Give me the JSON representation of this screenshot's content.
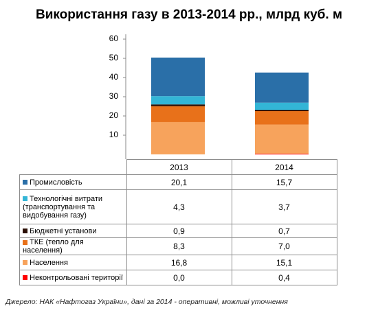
{
  "chart_data": {
    "type": "stacked_bar",
    "title": "Використання газу в 2013-2014 рр., млрд куб. м",
    "categories": [
      "2013",
      "2014"
    ],
    "ylim": [
      0,
      60
    ],
    "yticks": [
      10,
      20,
      30,
      40,
      50,
      60
    ],
    "series": [
      {
        "name": "Промисловість",
        "color": "#2a6fa8",
        "values": [
          20.1,
          15.7
        ],
        "value_labels": [
          "20,1",
          "15,7"
        ]
      },
      {
        "name": "Технологічні витрати (транспортування та видобування газу)",
        "color": "#33b5d6",
        "values": [
          4.3,
          3.7
        ],
        "value_labels": [
          "4,3",
          "3,7"
        ]
      },
      {
        "name": "Бюджетні установи",
        "color": "#2b0f05",
        "values": [
          0.9,
          0.7
        ],
        "value_labels": [
          "0,9",
          "0,7"
        ]
      },
      {
        "name": "ТКЕ (тепло для населення)",
        "color": "#e8711a",
        "values": [
          8.3,
          7.0
        ],
        "value_labels": [
          "8,3",
          "7,0"
        ]
      },
      {
        "name": "Населення",
        "color": "#f7a35c",
        "values": [
          16.8,
          15.1
        ],
        "value_labels": [
          "16,8",
          "15,1"
        ]
      },
      {
        "name": "Неконтрольовані території",
        "color": "#ff0000",
        "values": [
          0.0,
          0.4
        ],
        "value_labels": [
          "0,0",
          "0,4"
        ]
      }
    ],
    "source": "Джерело: НАК «Нафтогаз України», дані за 2014 - оперативні, можливі уточнення"
  }
}
